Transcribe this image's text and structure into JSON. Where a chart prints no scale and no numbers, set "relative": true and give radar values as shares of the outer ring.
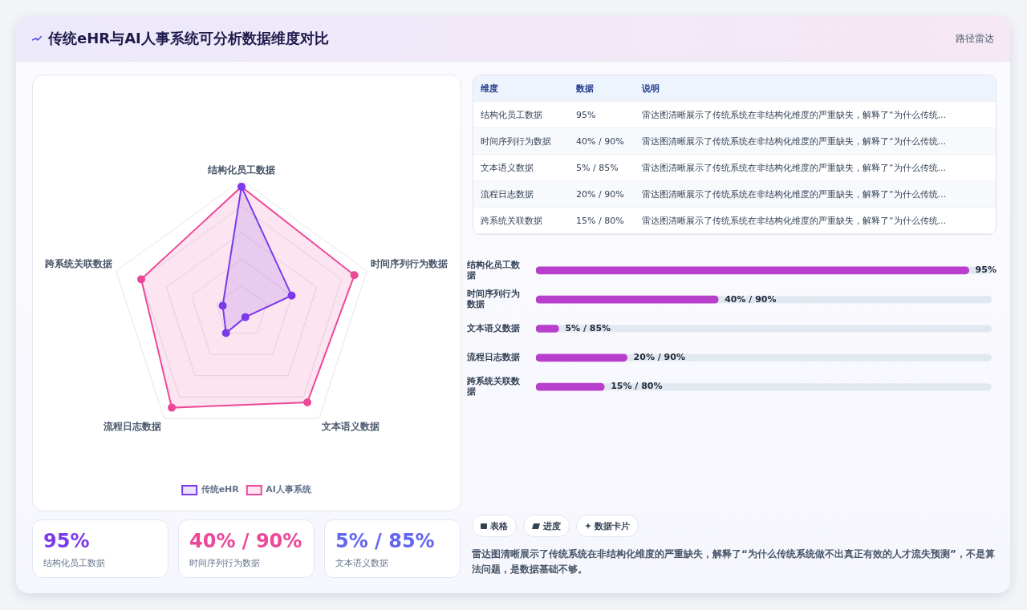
{
  "chart_data": [
    {
      "type": "other",
      "title": "传统eHR与AI人事系统可分析数据维度对比",
      "annotations": [
        "路径雷达"
      ]
    },
    {
      "type": "radar",
      "categories": [
        "结构化员工数据",
        "时间序列行为数据",
        "文本语义数据",
        "流程日志数据",
        "跨系统关联数据"
      ],
      "relative": true,
      "grid": true,
      "legend": "bottom",
      "marker": "circle",
      "series": [
        {
          "name": "传统eHR",
          "color": "#7c3aed",
          "values": [
            0.95,
            0.4,
            0.05,
            0.2,
            0.15
          ]
        },
        {
          "name": "AI人事系统",
          "color": "#ec4899",
          "values": [
            0.95,
            0.9,
            0.85,
            0.9,
            0.8
          ]
        }
      ]
    },
    {
      "type": "other",
      "annotations": [
        "维度",
        "数据",
        "说明",
        "结构化员工数据",
        "95%",
        "雷达图清晰展示了传统系统在非结构化维度的严重缺失，解释了“为什么传统...",
        "时间序列行为数据",
        "40% / 90%",
        "雷达图清晰展示了传统系统在非结构化维度的严重缺失，解释了“为什么传统...",
        "文本语义数据",
        "5% / 85%",
        "雷达图清晰展示了传统系统在非结构化维度的严重缺失，解释了“为什么传统...",
        "流程日志数据",
        "20% / 90%",
        "雷达图清晰展示了传统系统在非结构化维度的严重缺失，解释了“为什么传统...",
        "跨系统关联数据",
        "15% / 80%",
        "雷达图清晰展示了传统系统在非结构化维度的严重缺失，解释了“为什么传统..."
      ]
    },
    {
      "type": "bar",
      "orientation": "horizontal",
      "categories": [
        "结构化员工数据",
        "时间序列行为数据",
        "文本语义数据",
        "流程日志数据",
        "跨系统关联数据"
      ],
      "values": [
        95,
        40,
        5,
        20,
        15
      ],
      "color": "#b83fcc",
      "value_labels": [
        "95%",
        "40% / 90%",
        "5% / 85%",
        "20% / 90%",
        "15% / 80%"
      ]
    },
    {
      "type": "other",
      "annotations": [
        "95%",
        "结构化员工数据",
        "40% / 90%",
        "时间序列行为数据",
        "5% / 85%",
        "文本语义数据"
      ],
      "colors": [
        "#7c3aed",
        "#ec4899",
        "#6366f1"
      ]
    },
    {
      "type": "other",
      "annotations": [
        "表格",
        "进度",
        "数据卡片",
        "雷达图清晰展示了传统系统在非结构化维度的严重缺失，解释了“为什么传统系统做不出真正有效的人才流失预测”，不是算法问题，是数据基础不够。"
      ]
    }
  ]
}
